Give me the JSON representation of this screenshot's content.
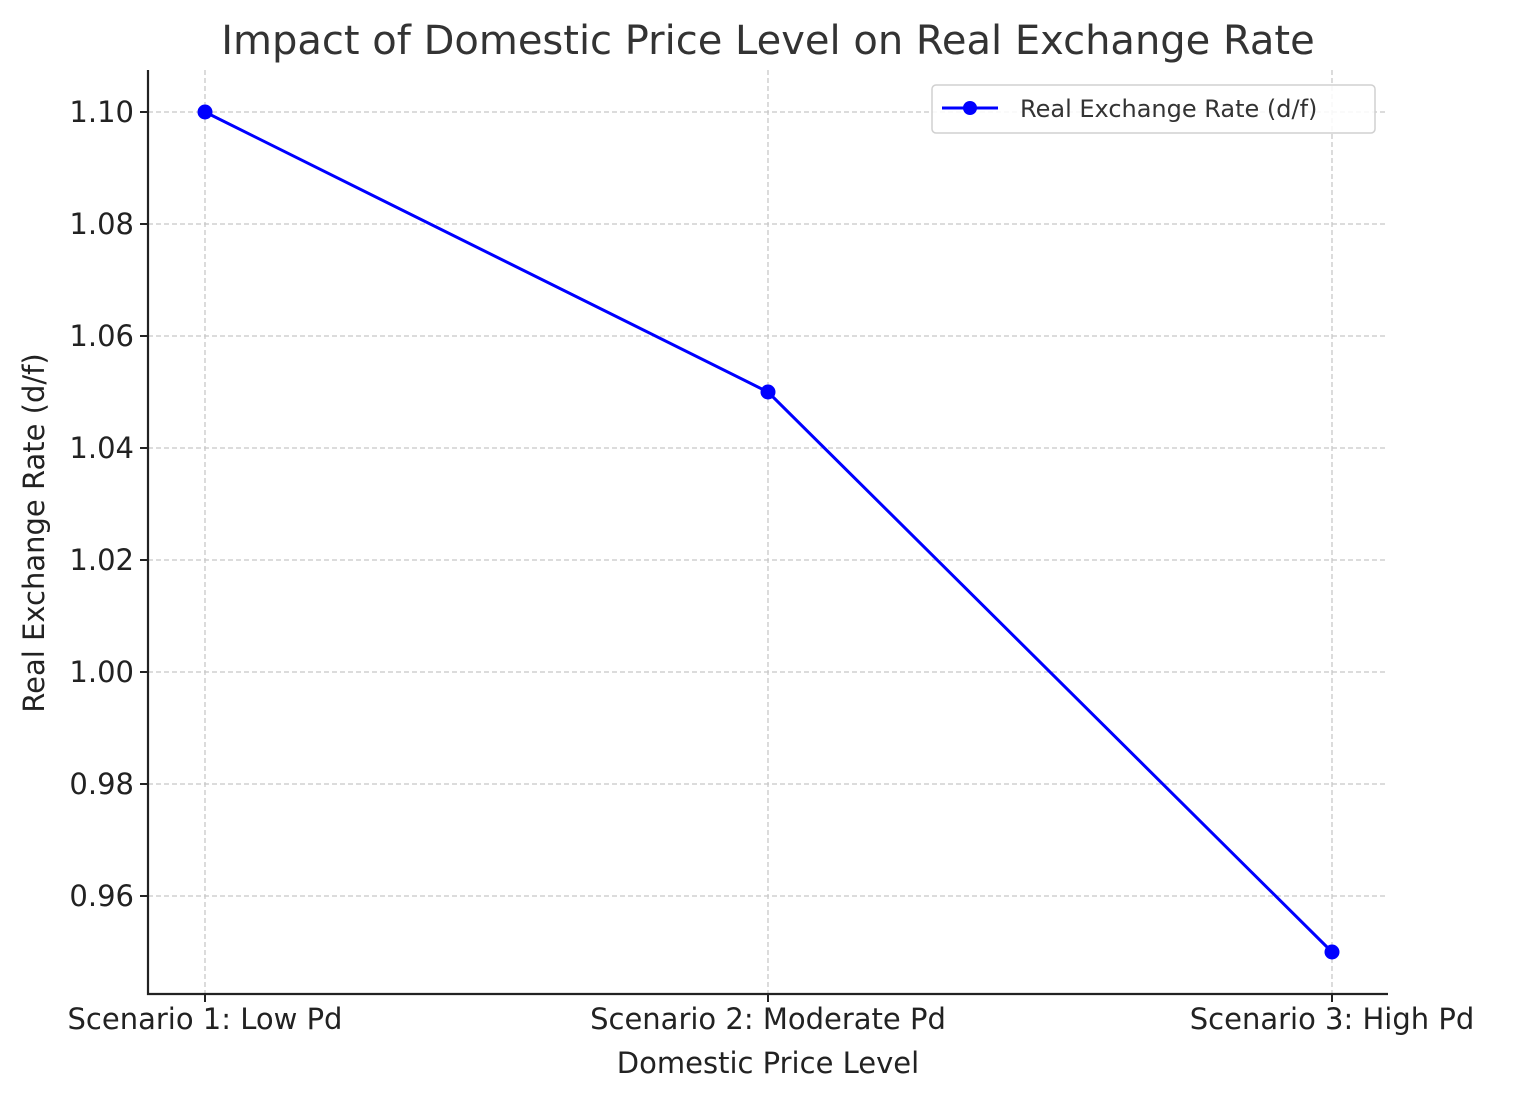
{
  "chart_data": {
    "type": "line",
    "title": "Impact of Domestic Price Level on Real Exchange Rate",
    "xlabel": "Domestic Price Level",
    "ylabel": "Real Exchange Rate (d/f)",
    "categories": [
      "Scenario 1: Low Pd",
      "Scenario 2: Moderate Pd",
      "Scenario 3: High Pd"
    ],
    "series": [
      {
        "name": "Real Exchange Rate (d/f)",
        "values": [
          1.1,
          1.05,
          0.95
        ],
        "color": "#0000ff",
        "marker": "circle"
      }
    ],
    "ylim": [
      0.9425,
      1.1075
    ],
    "yticks": [
      "0.96",
      "0.98",
      "1.00",
      "1.02",
      "1.04",
      "1.06",
      "1.08",
      "1.10"
    ],
    "grid": true,
    "legend_position": "top-right"
  }
}
